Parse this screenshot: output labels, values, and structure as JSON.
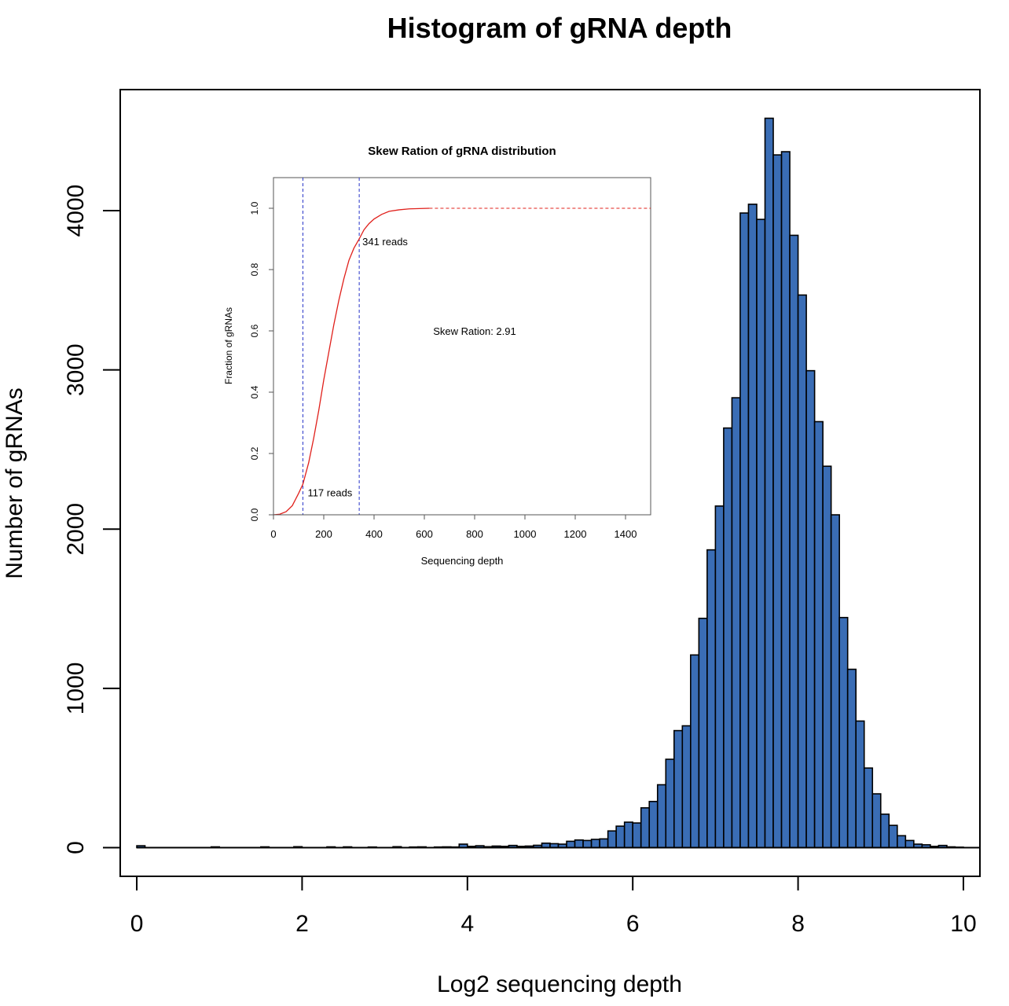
{
  "chart_data": [
    {
      "type": "bar",
      "title": "Histogram of gRNA depth",
      "xlabel": "Log2 sequencing depth",
      "ylabel": "Number of gRNAs",
      "xlim": [
        -0.2,
        10.2
      ],
      "ylim": [
        -180,
        4760
      ],
      "x_ticks": [
        "0",
        "2",
        "4",
        "6",
        "8",
        "10"
      ],
      "y_ticks": [
        "0",
        "1000",
        "2000",
        "3000",
        "4000"
      ],
      "bin_width": 0.1,
      "bar_color": "#3a6db5",
      "grid": false,
      "bars": [
        {
          "x": 0.0,
          "y": 12
        },
        {
          "x": 0.9,
          "y": 5
        },
        {
          "x": 1.5,
          "y": 5
        },
        {
          "x": 1.9,
          "y": 6
        },
        {
          "x": 2.3,
          "y": 5
        },
        {
          "x": 2.5,
          "y": 5
        },
        {
          "x": 2.8,
          "y": 4
        },
        {
          "x": 3.1,
          "y": 6
        },
        {
          "x": 3.3,
          "y": 4
        },
        {
          "x": 3.4,
          "y": 5
        },
        {
          "x": 3.6,
          "y": 4
        },
        {
          "x": 3.7,
          "y": 5
        },
        {
          "x": 3.8,
          "y": 4
        },
        {
          "x": 3.9,
          "y": 22
        },
        {
          "x": 4.0,
          "y": 8
        },
        {
          "x": 4.1,
          "y": 12
        },
        {
          "x": 4.2,
          "y": 6
        },
        {
          "x": 4.3,
          "y": 10
        },
        {
          "x": 4.4,
          "y": 8
        },
        {
          "x": 4.5,
          "y": 14
        },
        {
          "x": 4.6,
          "y": 8
        },
        {
          "x": 4.7,
          "y": 10
        },
        {
          "x": 4.8,
          "y": 15
        },
        {
          "x": 4.9,
          "y": 28
        },
        {
          "x": 5.0,
          "y": 25
        },
        {
          "x": 5.1,
          "y": 22
        },
        {
          "x": 5.2,
          "y": 40
        },
        {
          "x": 5.3,
          "y": 48
        },
        {
          "x": 5.4,
          "y": 45
        },
        {
          "x": 5.5,
          "y": 52
        },
        {
          "x": 5.6,
          "y": 55
        },
        {
          "x": 5.7,
          "y": 105
        },
        {
          "x": 5.8,
          "y": 135
        },
        {
          "x": 5.9,
          "y": 160
        },
        {
          "x": 6.0,
          "y": 155
        },
        {
          "x": 6.1,
          "y": 250
        },
        {
          "x": 6.2,
          "y": 290
        },
        {
          "x": 6.3,
          "y": 395
        },
        {
          "x": 6.4,
          "y": 555
        },
        {
          "x": 6.5,
          "y": 735
        },
        {
          "x": 6.6,
          "y": 765
        },
        {
          "x": 6.7,
          "y": 1210
        },
        {
          "x": 6.8,
          "y": 1440
        },
        {
          "x": 6.9,
          "y": 1870
        },
        {
          "x": 7.0,
          "y": 2145
        },
        {
          "x": 7.1,
          "y": 2635
        },
        {
          "x": 7.2,
          "y": 2825
        },
        {
          "x": 7.3,
          "y": 3985
        },
        {
          "x": 7.4,
          "y": 4040
        },
        {
          "x": 7.5,
          "y": 3945
        },
        {
          "x": 7.6,
          "y": 4580
        },
        {
          "x": 7.7,
          "y": 4350
        },
        {
          "x": 7.8,
          "y": 4370
        },
        {
          "x": 7.9,
          "y": 3845
        },
        {
          "x": 8.0,
          "y": 3470
        },
        {
          "x": 8.1,
          "y": 2995
        },
        {
          "x": 8.2,
          "y": 2675
        },
        {
          "x": 8.3,
          "y": 2395
        },
        {
          "x": 8.4,
          "y": 2090
        },
        {
          "x": 8.5,
          "y": 1445
        },
        {
          "x": 8.6,
          "y": 1120
        },
        {
          "x": 8.7,
          "y": 795
        },
        {
          "x": 8.8,
          "y": 500
        },
        {
          "x": 8.9,
          "y": 338
        },
        {
          "x": 9.0,
          "y": 210
        },
        {
          "x": 9.1,
          "y": 140
        },
        {
          "x": 9.2,
          "y": 75
        },
        {
          "x": 9.3,
          "y": 45
        },
        {
          "x": 9.4,
          "y": 22
        },
        {
          "x": 9.5,
          "y": 18
        },
        {
          "x": 9.6,
          "y": 8
        },
        {
          "x": 9.7,
          "y": 14
        },
        {
          "x": 9.8,
          "y": 5
        },
        {
          "x": 9.9,
          "y": 3
        }
      ]
    },
    {
      "type": "line",
      "title": "Skew Ration of gRNA distribution",
      "xlabel": "Sequencing depth",
      "ylabel": "Fraction of gRNAs",
      "xlim": [
        0,
        1500
      ],
      "ylim": [
        0,
        1.1
      ],
      "x_ticks": [
        "0",
        "200",
        "400",
        "600",
        "800",
        "1000",
        "1200",
        "1400"
      ],
      "y_ticks": [
        "0.0",
        "0.2",
        "0.4",
        "0.6",
        "0.8",
        "1.0"
      ],
      "line_color": "#e0201b",
      "vline_color": "#2633c8",
      "series": [
        {
          "x": [
            0,
            25,
            50,
            75,
            100,
            117,
            140,
            160,
            180,
            200,
            220,
            240,
            260,
            280,
            300,
            320,
            341,
            360,
            380,
            400,
            430,
            460,
            500,
            540,
            580,
            620
          ],
          "y": [
            0.0,
            0.002,
            0.01,
            0.03,
            0.07,
            0.1,
            0.17,
            0.25,
            0.34,
            0.44,
            0.53,
            0.62,
            0.7,
            0.77,
            0.83,
            0.87,
            0.9,
            0.93,
            0.95,
            0.965,
            0.98,
            0.99,
            0.995,
            0.998,
            0.999,
            1.0
          ]
        }
      ],
      "reference_lines": [
        {
          "orientation": "vertical",
          "x": 117,
          "label": "117 reads"
        },
        {
          "orientation": "vertical",
          "x": 341,
          "label": "341 reads"
        },
        {
          "orientation": "horizontal",
          "y": 1.0,
          "x_from": 620
        }
      ],
      "annotation": "Skew Ration: 2.91"
    }
  ]
}
